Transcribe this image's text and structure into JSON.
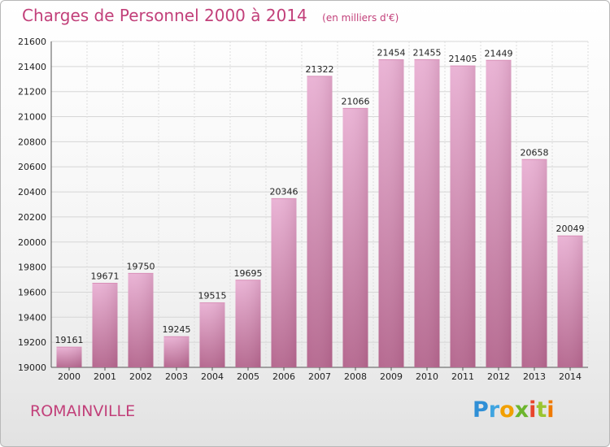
{
  "header": {
    "title": "Charges de Personnel 2000 à 2014",
    "unit": "(en milliers d'€)"
  },
  "footer": {
    "city": "ROMAINVILLE",
    "logo": "Proxiti"
  },
  "colors": {
    "accent": "#c2407a",
    "bar_light": "#eab3d5",
    "bar_dark": "#b5688f"
  },
  "chart_data": {
    "type": "bar",
    "title": "Charges de Personnel 2000 à 2014",
    "subtitle": "(en milliers d'€)",
    "xlabel": "",
    "ylabel": "",
    "categories": [
      "2000",
      "2001",
      "2002",
      "2003",
      "2004",
      "2005",
      "2006",
      "2007",
      "2008",
      "2009",
      "2010",
      "2011",
      "2012",
      "2013",
      "2014"
    ],
    "values": [
      19161,
      19671,
      19750,
      19245,
      19515,
      19695,
      20346,
      21322,
      21066,
      21454,
      21455,
      21405,
      21449,
      20658,
      20049
    ],
    "ylim": [
      19000,
      21600
    ],
    "yticks": [
      19000,
      19200,
      19400,
      19600,
      19800,
      20000,
      20200,
      20400,
      20600,
      20800,
      21000,
      21200,
      21400,
      21600
    ],
    "grid": true
  }
}
